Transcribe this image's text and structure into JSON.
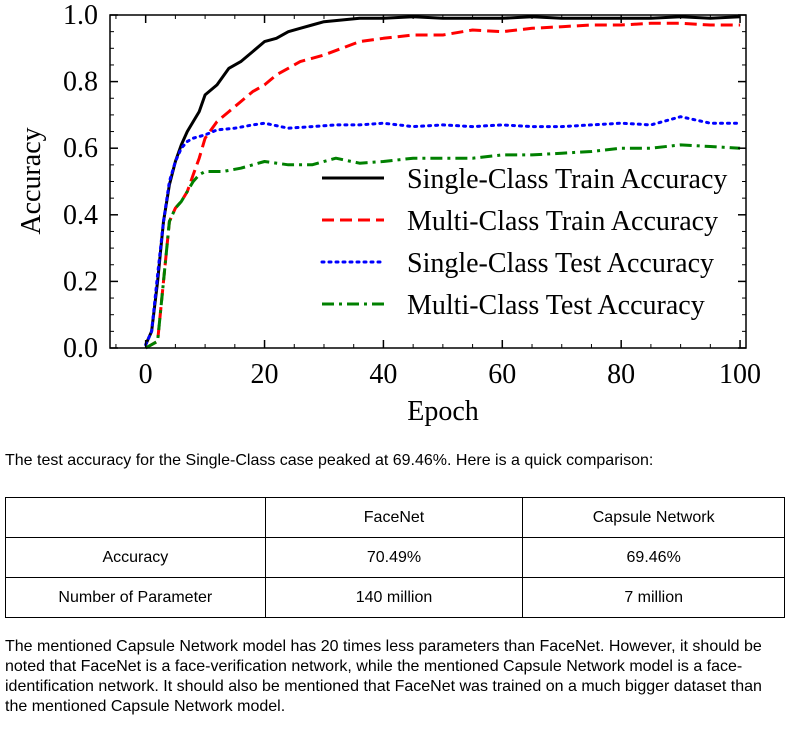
{
  "chart_data": {
    "type": "line",
    "title": "",
    "xlabel": "Epoch",
    "ylabel": "Accuracy",
    "xlim": [
      -6,
      101
    ],
    "ylim": [
      0.0,
      1.0
    ],
    "xticks": [
      0,
      20,
      40,
      60,
      80,
      100
    ],
    "yticks": [
      0.0,
      0.2,
      0.4,
      0.6,
      0.8,
      1.0
    ],
    "xtick_labels": [
      "0",
      "20",
      "40",
      "60",
      "80",
      "100"
    ],
    "ytick_labels": [
      "0.0",
      "0.2",
      "0.4",
      "0.6",
      "0.8",
      "1.0"
    ],
    "grid": false,
    "legend_position": "center-right",
    "series": [
      {
        "name": "Single-Class Train Accuracy",
        "color": "#000000",
        "style": "solid",
        "x": [
          0,
          1,
          2,
          3,
          4,
          5,
          6,
          7,
          8,
          9,
          10,
          12,
          14,
          16,
          18,
          20,
          22,
          24,
          26,
          28,
          30,
          33,
          36,
          40,
          45,
          50,
          55,
          60,
          65,
          70,
          75,
          80,
          85,
          90,
          95,
          100
        ],
        "y": [
          0.01,
          0.05,
          0.2,
          0.38,
          0.49,
          0.56,
          0.61,
          0.65,
          0.68,
          0.71,
          0.76,
          0.79,
          0.84,
          0.86,
          0.89,
          0.92,
          0.93,
          0.95,
          0.96,
          0.97,
          0.98,
          0.985,
          0.99,
          0.99,
          0.995,
          0.99,
          0.99,
          0.99,
          0.995,
          0.99,
          0.99,
          0.99,
          0.99,
          0.995,
          0.99,
          0.995
        ]
      },
      {
        "name": "Multi-Class Train Accuracy",
        "color": "#ff0000",
        "style": "dashed",
        "x": [
          0,
          2,
          3,
          4,
          5,
          6,
          7,
          8,
          9,
          10,
          12,
          14,
          16,
          18,
          20,
          22,
          24,
          26,
          28,
          30,
          33,
          36,
          40,
          45,
          50,
          55,
          60,
          65,
          70,
          75,
          80,
          85,
          90,
          95,
          100
        ],
        "y": [
          0.0,
          0.02,
          0.2,
          0.38,
          0.42,
          0.44,
          0.47,
          0.52,
          0.57,
          0.63,
          0.68,
          0.71,
          0.74,
          0.77,
          0.79,
          0.82,
          0.84,
          0.86,
          0.87,
          0.88,
          0.9,
          0.92,
          0.93,
          0.94,
          0.94,
          0.955,
          0.95,
          0.96,
          0.965,
          0.97,
          0.97,
          0.975,
          0.975,
          0.97,
          0.97
        ]
      },
      {
        "name": "Single-Class Test Accuracy",
        "color": "#0000ff",
        "style": "dotted",
        "x": [
          0,
          1,
          2,
          3,
          4,
          5,
          6,
          7,
          8,
          10,
          12,
          15,
          18,
          20,
          24,
          28,
          32,
          36,
          40,
          45,
          50,
          55,
          60,
          65,
          70,
          75,
          80,
          85,
          90,
          95,
          100
        ],
        "y": [
          0.01,
          0.05,
          0.22,
          0.38,
          0.5,
          0.56,
          0.6,
          0.62,
          0.63,
          0.64,
          0.655,
          0.66,
          0.67,
          0.675,
          0.66,
          0.665,
          0.67,
          0.67,
          0.675,
          0.665,
          0.67,
          0.665,
          0.67,
          0.665,
          0.665,
          0.67,
          0.675,
          0.67,
          0.6946,
          0.675,
          0.675
        ]
      },
      {
        "name": "Multi-Class Test Accuracy",
        "color": "#008000",
        "style": "dashdot",
        "x": [
          0,
          2,
          3,
          4,
          5,
          6,
          7,
          8,
          9,
          10,
          13,
          16,
          20,
          24,
          28,
          32,
          36,
          40,
          45,
          50,
          55,
          60,
          65,
          70,
          75,
          80,
          85,
          90,
          95,
          100
        ],
        "y": [
          0.0,
          0.02,
          0.2,
          0.38,
          0.42,
          0.44,
          0.47,
          0.5,
          0.52,
          0.53,
          0.53,
          0.54,
          0.56,
          0.55,
          0.55,
          0.57,
          0.555,
          0.56,
          0.57,
          0.57,
          0.57,
          0.58,
          0.58,
          0.585,
          0.59,
          0.6,
          0.6,
          0.61,
          0.605,
          0.6
        ]
      }
    ]
  },
  "text": {
    "intro": "The test accuracy for the Single-Class case peaked at 69.46%. Here is a quick comparison:",
    "outro": "The mentioned Capsule Network model has 20 times less parameters than FaceNet. However, it should be noted that FaceNet is a face-verification network, while the mentioned Capsule Network model is a face-identification network. It should also be mentioned that FaceNet was trained on a much bigger dataset than the mentioned Capsule Network model."
  },
  "table": {
    "headers": [
      "",
      "FaceNet",
      "Capsule Network"
    ],
    "rows": [
      [
        "Accuracy",
        "70.49%",
        "69.46%"
      ],
      [
        "Number of Parameter",
        "140 million",
        "7 million"
      ]
    ]
  }
}
